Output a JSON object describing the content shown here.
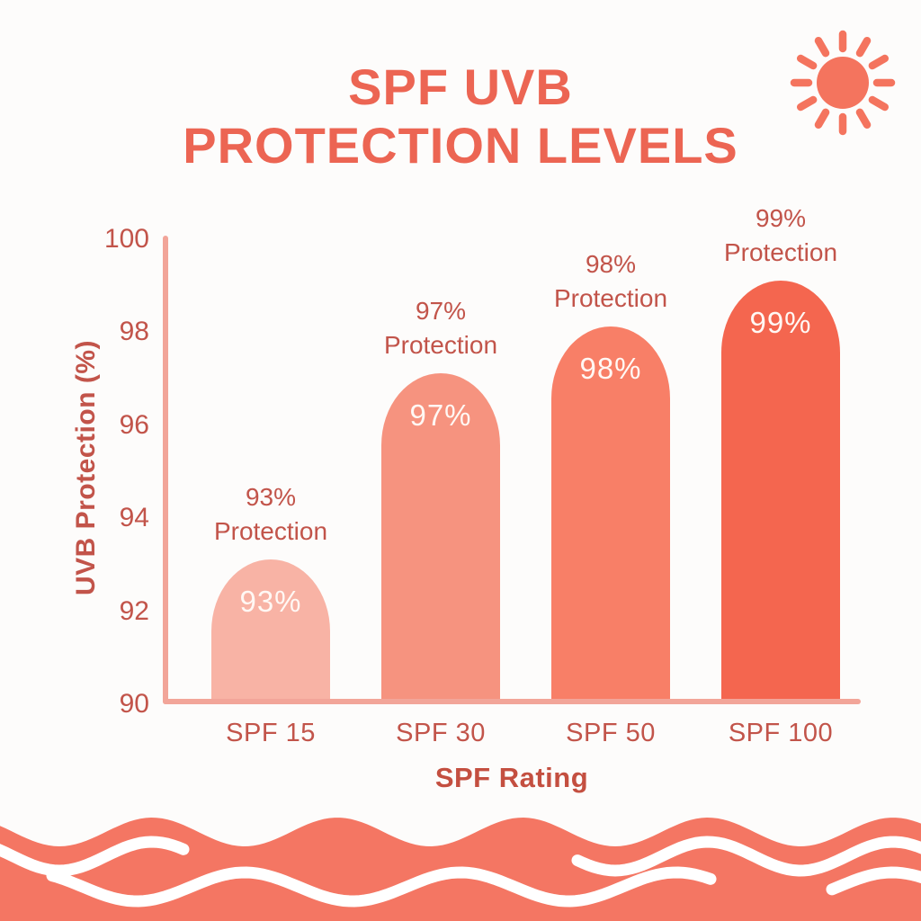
{
  "header": {
    "title_line1": "SPF UVB",
    "title_line2": "PROTECTION LEVELS"
  },
  "chart_data": {
    "type": "bar",
    "title": "SPF UVB PROTECTION LEVELS",
    "categories": [
      "SPF 15",
      "SPF 30",
      "SPF 50",
      "SPF 100"
    ],
    "values": [
      93,
      97,
      98,
      99
    ],
    "value_labels": [
      "93%",
      "97%",
      "98%",
      "99%"
    ],
    "annotations": [
      {
        "line1": "93%",
        "line2": "Protection"
      },
      {
        "line1": "97%",
        "line2": "Protection"
      },
      {
        "line1": "98%",
        "line2": "Protection"
      },
      {
        "line1": "99%",
        "line2": "Protection"
      }
    ],
    "xlabel": "SPF Rating",
    "ylabel": "UVB Protection (%)",
    "yticks": [
      100,
      98,
      96,
      94,
      92,
      90
    ],
    "ylim": [
      90,
      100
    ],
    "grid": false,
    "legend": false,
    "bar_colors": [
      "#F8B3A5",
      "#F6937F",
      "#F87F67",
      "#F4664F"
    ]
  },
  "colors": {
    "title_text": "#EC6553",
    "label_text": "#C2544A",
    "axis_line": "#F2A599",
    "sun": "#F4745E",
    "wave_fill": "#F47663",
    "wave_stroke": "#FFFFFF",
    "background": "#FDFCFB",
    "bar_value_text": "#FFF8F4"
  }
}
